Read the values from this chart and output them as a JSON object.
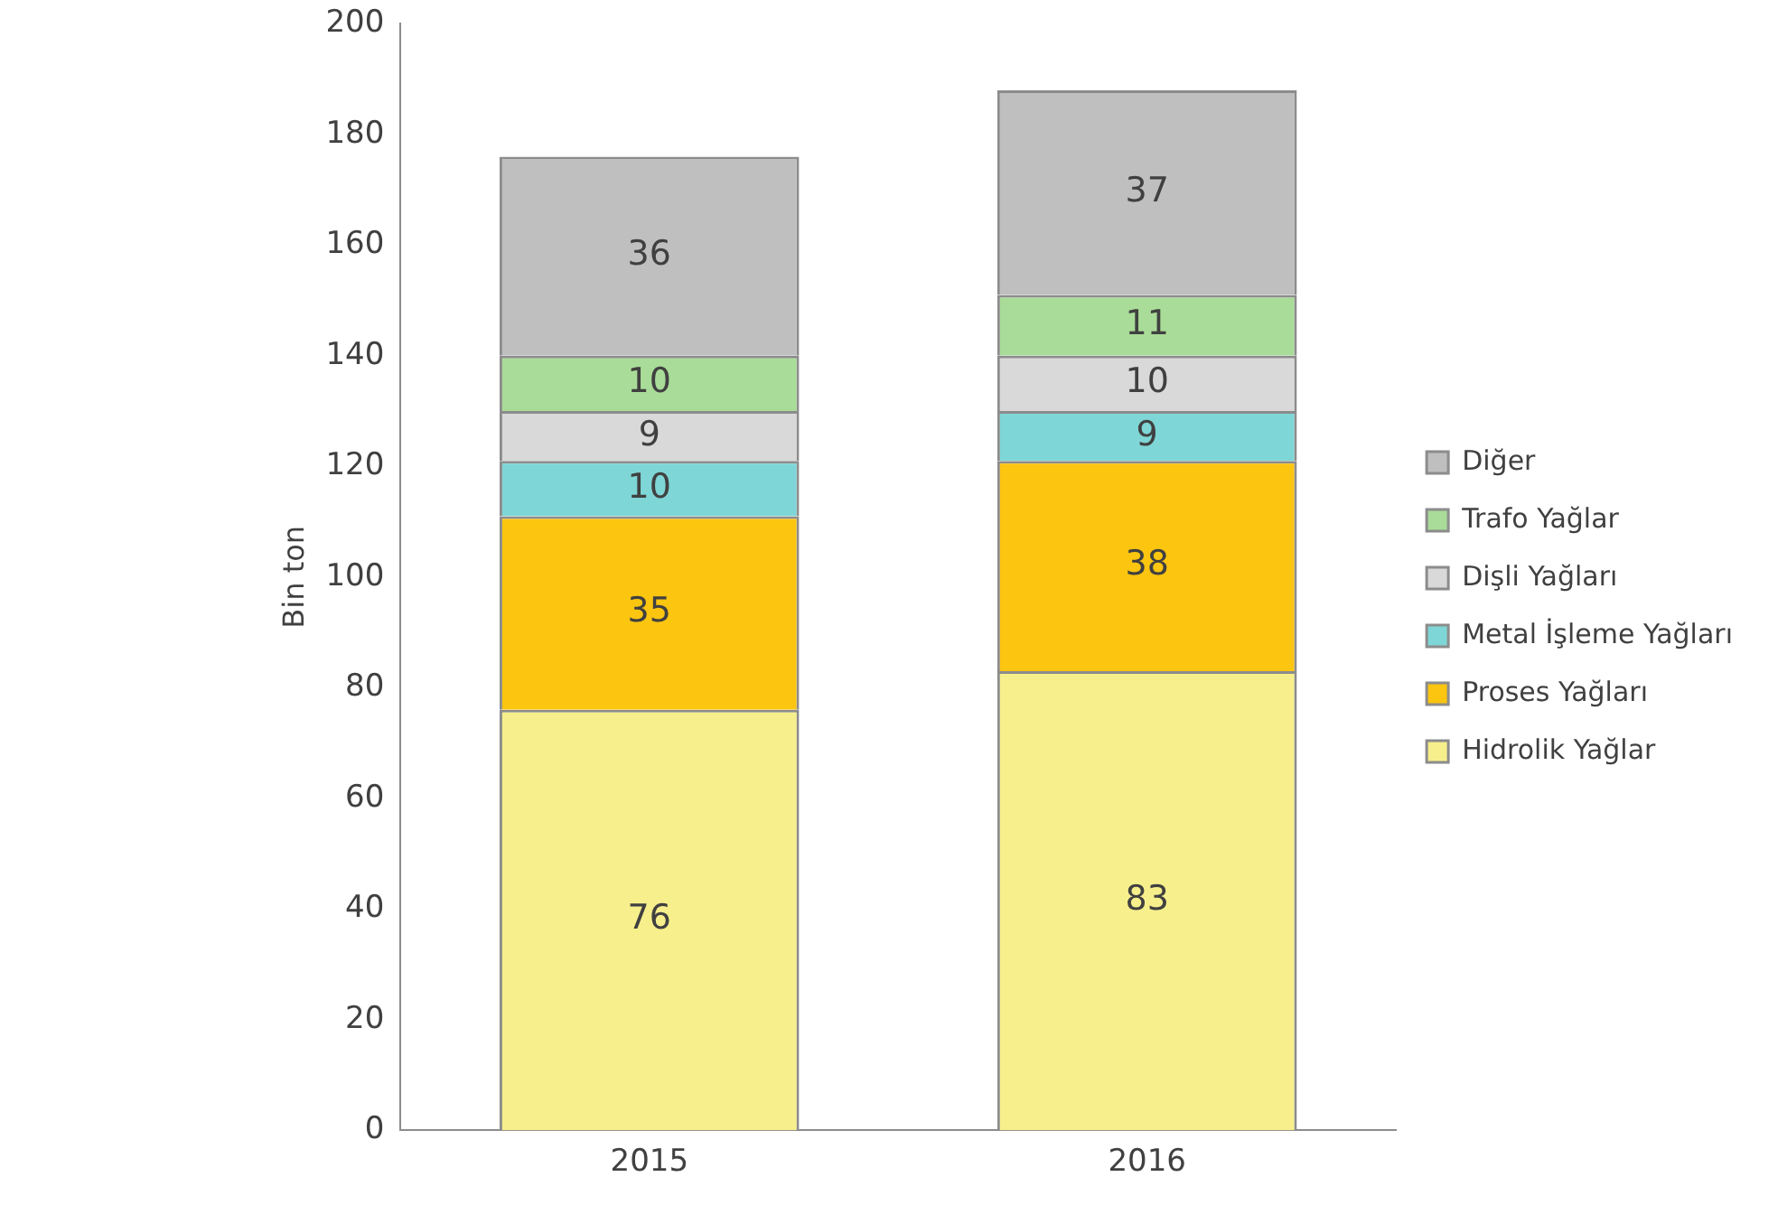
{
  "chart_data": {
    "type": "bar",
    "stacked": true,
    "ylabel": "Bin ton",
    "categories": [
      "2015",
      "2016"
    ],
    "series": [
      {
        "name": "Hidrolik Yağlar",
        "color": "#f7ef8c",
        "values": [
          76,
          83
        ]
      },
      {
        "name": "Proses Yağları",
        "color": "#fcc510",
        "values": [
          35,
          38
        ]
      },
      {
        "name": "Metal İşleme Yağları",
        "color": "#7fd6d6",
        "values": [
          10,
          9
        ]
      },
      {
        "name": "Dişli Yağları",
        "color": "#d9d9d9",
        "values": [
          9,
          10
        ]
      },
      {
        "name": "Trafo Yağlar",
        "color": "#a9dc98",
        "values": [
          10,
          11
        ]
      },
      {
        "name": "Diğer",
        "color": "#bfbfbf",
        "values": [
          36,
          37
        ]
      }
    ],
    "ylim": [
      0,
      200
    ],
    "yticks": [
      0,
      20,
      40,
      60,
      80,
      100,
      120,
      140,
      160,
      180,
      200
    ],
    "grid": false,
    "legend": "right",
    "data_labels": true
  }
}
